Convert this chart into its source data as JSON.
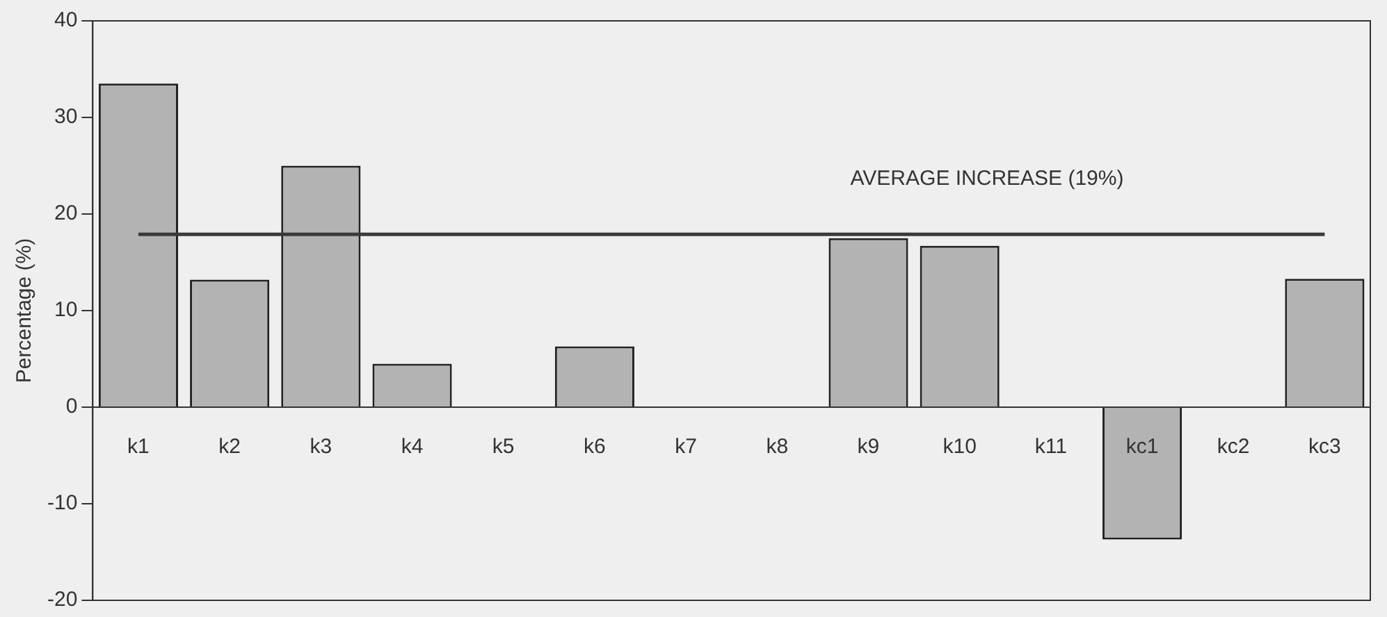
{
  "chart_data": {
    "type": "bar",
    "ylabel": "Percentage (%)",
    "categories": [
      "k1",
      "k2",
      "k3",
      "k4",
      "k5",
      "k6",
      "k7",
      "k8",
      "k9",
      "k10",
      "k11",
      "kc1",
      "kc2",
      "kc3"
    ],
    "values": [
      33.5,
      13.2,
      25,
      4.5,
      0,
      6.3,
      0,
      0,
      17.5,
      16.7,
      0,
      -13.7,
      0,
      13.3
    ],
    "color": "#b3b3b3",
    "ylim": [
      -20,
      40
    ],
    "yticks": [
      -20,
      -10,
      0,
      10,
      20,
      30,
      40
    ],
    "grid": false,
    "legend": false,
    "ref_lines": [
      {
        "axis": "y",
        "value": 17.9,
        "label": "AVERAGE INCREASE (19%)",
        "color": "#3a3a3a"
      }
    ]
  }
}
